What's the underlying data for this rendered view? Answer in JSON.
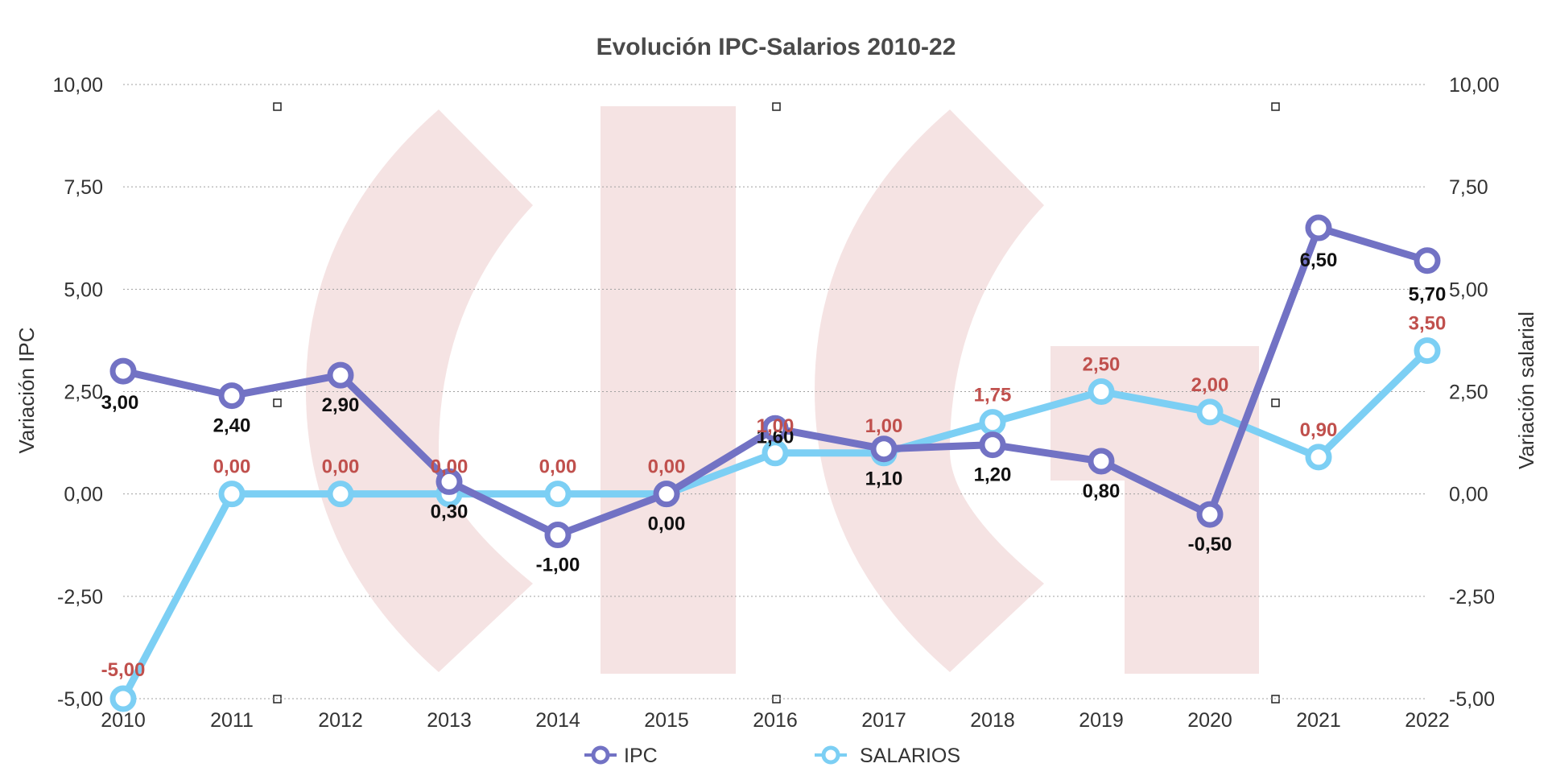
{
  "chart_data": {
    "type": "line",
    "title": "Evolución IPC-Salarios 2010-22",
    "categories": [
      "2010",
      "2011",
      "2012",
      "2013",
      "2014",
      "2015",
      "2016",
      "2017",
      "2018",
      "2019",
      "2020",
      "2021",
      "2022"
    ],
    "y_left": {
      "label": "Variación IPC",
      "range": [
        -5,
        10
      ],
      "ticks": [
        "-5,00",
        "-2,50",
        "0,00",
        "2,50",
        "5,00",
        "7,50",
        "10,00"
      ]
    },
    "y_right": {
      "label": "Variación salarial",
      "range": [
        -5,
        10
      ],
      "ticks": [
        "-5,00",
        "-2,50",
        "0,00",
        "2,50",
        "5,00",
        "7,50",
        "10,00"
      ]
    },
    "grid": "horizontal-dotted",
    "legend_position": "bottom",
    "series": [
      {
        "name": "IPC",
        "color": "#7272c4",
        "values": [
          3.0,
          2.4,
          2.9,
          0.3,
          -1.0,
          0.0,
          1.6,
          1.1,
          1.2,
          0.8,
          -0.5,
          6.5,
          5.7
        ],
        "labels": [
          "3,00",
          "2,40",
          "2,90",
          "0,30",
          "-1,00",
          "0,00",
          "1,60",
          "1,10",
          "1,20",
          "0,80",
          "-0,50",
          "6,50",
          "5,70"
        ]
      },
      {
        "name": "SALARIOS",
        "color": "#7ccff4",
        "values": [
          -5.0,
          0.0,
          0.0,
          0.0,
          0.0,
          0.0,
          1.0,
          1.0,
          1.75,
          2.5,
          2.0,
          0.9,
          3.5
        ],
        "labels": [
          "-5,00",
          "0,00",
          "0,00",
          "0,00",
          "0,00",
          "0,00",
          "1,00",
          "1,00",
          "1,75",
          "2,50",
          "2,00",
          "0,90",
          "3,50"
        ]
      }
    ]
  }
}
